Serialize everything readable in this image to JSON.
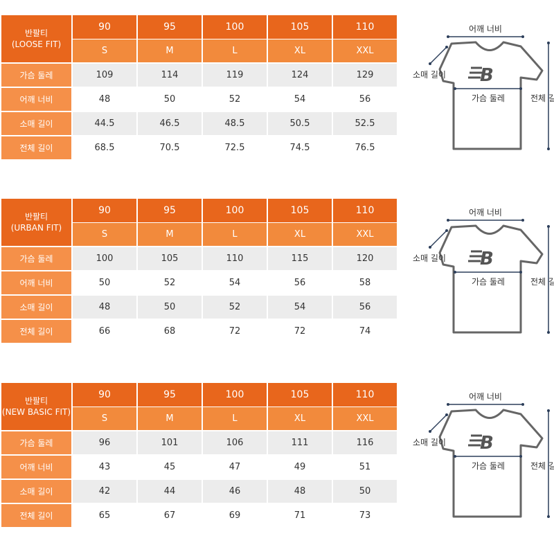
{
  "tables": [
    {
      "title": "반팔티",
      "fit": "(LOOSE FIT)",
      "numeric_sizes": [
        "90",
        "95",
        "100",
        "105",
        "110"
      ],
      "letter_sizes": [
        "S",
        "M",
        "L",
        "XL",
        "XXL"
      ],
      "rows": [
        {
          "label": "가슴 둘레",
          "values": [
            "109",
            "114",
            "119",
            "124",
            "129"
          ]
        },
        {
          "label": "어깨 너비",
          "values": [
            "48",
            "50",
            "52",
            "54",
            "56"
          ]
        },
        {
          "label": "소매 길이",
          "values": [
            "44.5",
            "46.5",
            "48.5",
            "50.5",
            "52.5"
          ]
        },
        {
          "label": "전체 길이",
          "values": [
            "68.5",
            "70.5",
            "72.5",
            "74.5",
            "76.5"
          ]
        }
      ]
    },
    {
      "title": "반팔티",
      "fit": "(URBAN FIT)",
      "numeric_sizes": [
        "90",
        "95",
        "100",
        "105",
        "110"
      ],
      "letter_sizes": [
        "S",
        "M",
        "L",
        "XL",
        "XXL"
      ],
      "rows": [
        {
          "label": "가슴 둘레",
          "values": [
            "100",
            "105",
            "110",
            "115",
            "120"
          ]
        },
        {
          "label": "어깨 너비",
          "values": [
            "50",
            "52",
            "54",
            "56",
            "58"
          ]
        },
        {
          "label": "소매 길이",
          "values": [
            "48",
            "50",
            "52",
            "54",
            "56"
          ]
        },
        {
          "label": "전체 길이",
          "values": [
            "66",
            "68",
            "72",
            "72",
            "74"
          ]
        }
      ]
    },
    {
      "title": "반팔티",
      "fit": "(NEW BASIC FIT)",
      "numeric_sizes": [
        "90",
        "95",
        "100",
        "105",
        "110"
      ],
      "letter_sizes": [
        "S",
        "M",
        "L",
        "XL",
        "XXL"
      ],
      "rows": [
        {
          "label": "가슴 둘레",
          "values": [
            "96",
            "101",
            "106",
            "111",
            "116"
          ]
        },
        {
          "label": "어깨 너비",
          "values": [
            "43",
            "45",
            "47",
            "49",
            "51"
          ]
        },
        {
          "label": "소매 길이",
          "values": [
            "42",
            "44",
            "46",
            "48",
            "50"
          ]
        },
        {
          "label": "전체 길이",
          "values": [
            "65",
            "67",
            "69",
            "71",
            "73"
          ]
        }
      ]
    }
  ],
  "diagram": {
    "shoulder": "어깨 너비",
    "sleeve": "소매 길이",
    "chest": "가슴 둘레",
    "length": "전체 길이",
    "logo": "new-balance-logo",
    "logo_text": "B"
  },
  "colors": {
    "header": "#e8661c",
    "subheader": "#f28a3c",
    "label": "#f59049",
    "row_alt": "#ececec"
  }
}
